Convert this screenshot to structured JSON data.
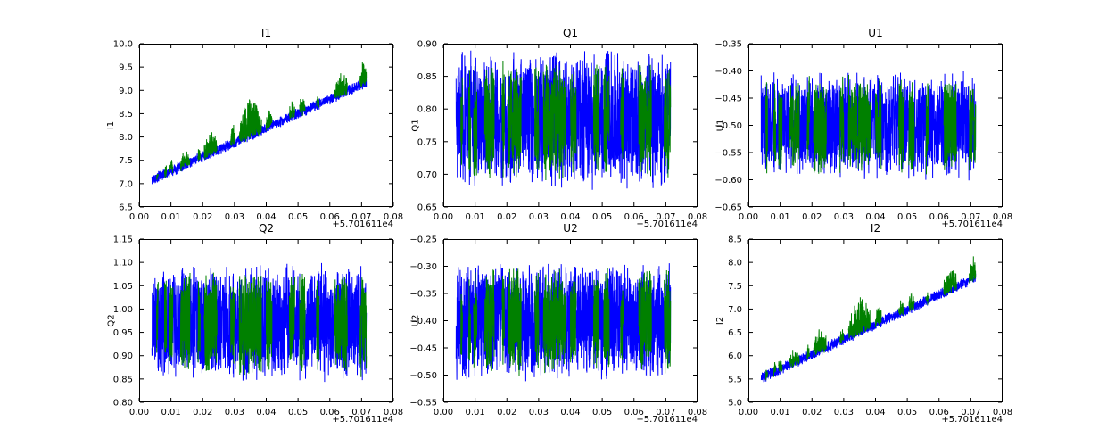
{
  "figure": {
    "background": "#ffffff",
    "axes_color": "#000000",
    "colors": {
      "series_blue": "#0000ff",
      "series_green": "#008000"
    },
    "x_offset_label": "+5.701611e4",
    "x_data_start": 0.004,
    "x_data_end": 0.0715,
    "green_intervals": [
      [
        0.0055,
        0.006,
        0.15
      ],
      [
        0.008,
        0.0086,
        0.25
      ],
      [
        0.0095,
        0.0106,
        0.3
      ],
      [
        0.013,
        0.016,
        0.35
      ],
      [
        0.0185,
        0.0192,
        0.3
      ],
      [
        0.0205,
        0.0245,
        0.6
      ],
      [
        0.0288,
        0.03,
        0.5
      ],
      [
        0.0315,
        0.0385,
        1.0
      ],
      [
        0.04,
        0.0418,
        0.5
      ],
      [
        0.0473,
        0.049,
        0.35
      ],
      [
        0.0505,
        0.0522,
        0.45
      ],
      [
        0.0558,
        0.0566,
        0.25
      ],
      [
        0.0615,
        0.0655,
        0.6
      ],
      [
        0.0695,
        0.0716,
        0.65
      ]
    ]
  },
  "chart_data": [
    {
      "type": "line",
      "title": "I1",
      "ylabel": "I1",
      "x_offset": "+5.701611e4",
      "xlim": [
        0,
        0.08
      ],
      "ylim": [
        6.5,
        10.0
      ],
      "xtick_values": [
        0,
        0.01,
        0.02,
        0.03,
        0.04,
        0.05,
        0.06,
        0.07,
        0.08
      ],
      "xtick_labels": [
        "0.00",
        "0.01",
        "0.02",
        "0.03",
        "0.04",
        "0.05",
        "0.06",
        "0.07",
        "0.08"
      ],
      "ytick_values": [
        6.5,
        7.0,
        7.5,
        8.0,
        8.5,
        9.0,
        9.5,
        10.0
      ],
      "ytick_labels": [
        "6.5",
        "7.0",
        "7.5",
        "8.0",
        "8.5",
        "9.0",
        "9.5",
        "10.0"
      ],
      "series": [
        {
          "name": "channel-blue",
          "color_key": "series_blue",
          "kind": "trend",
          "y_start": 7.08,
          "y_end": 9.17,
          "band": 0.26
        },
        {
          "name": "channel-green",
          "color_key": "series_green",
          "kind": "trend_spikes",
          "y_start": 7.08,
          "y_end": 9.17,
          "band": 0.22,
          "spike_amp": 0.75
        }
      ]
    },
    {
      "type": "line",
      "title": "Q1",
      "ylabel": "Q1",
      "x_offset": "+5.701611e4",
      "xlim": [
        0,
        0.08
      ],
      "ylim": [
        0.65,
        0.9
      ],
      "xtick_values": [
        0,
        0.01,
        0.02,
        0.03,
        0.04,
        0.05,
        0.06,
        0.07,
        0.08
      ],
      "xtick_labels": [
        "0.00",
        "0.01",
        "0.02",
        "0.03",
        "0.04",
        "0.05",
        "0.06",
        "0.07",
        "0.08"
      ],
      "ytick_values": [
        0.65,
        0.7,
        0.75,
        0.8,
        0.85,
        0.9
      ],
      "ytick_labels": [
        "0.65",
        "0.70",
        "0.75",
        "0.80",
        "0.85",
        "0.90"
      ],
      "series": [
        {
          "name": "channel-blue",
          "color_key": "series_blue",
          "kind": "band",
          "y_low": 0.675,
          "y_high": 0.893
        },
        {
          "name": "channel-green",
          "color_key": "series_green",
          "kind": "band",
          "y_low": 0.688,
          "y_high": 0.88
        }
      ]
    },
    {
      "type": "line",
      "title": "U1",
      "ylabel": "U1",
      "x_offset": "+5.701611e4",
      "xlim": [
        0,
        0.08
      ],
      "ylim": [
        -0.65,
        -0.35
      ],
      "xtick_values": [
        0,
        0.01,
        0.02,
        0.03,
        0.04,
        0.05,
        0.06,
        0.07,
        0.08
      ],
      "xtick_labels": [
        "0.00",
        "0.01",
        "0.02",
        "0.03",
        "0.04",
        "0.05",
        "0.06",
        "0.07",
        "0.08"
      ],
      "ytick_values": [
        -0.65,
        -0.6,
        -0.55,
        -0.5,
        -0.45,
        -0.4,
        -0.35
      ],
      "ytick_labels": [
        "−0.65",
        "−0.60",
        "−0.55",
        "−0.50",
        "−0.45",
        "−0.40",
        "−0.35"
      ],
      "series": [
        {
          "name": "channel-blue",
          "color_key": "series_blue",
          "kind": "band",
          "y_low": -0.603,
          "y_high": -0.397
        },
        {
          "name": "channel-green",
          "color_key": "series_green",
          "kind": "band",
          "y_low": -0.594,
          "y_high": -0.406
        }
      ]
    },
    {
      "type": "line",
      "title": "Q2",
      "ylabel": "Q2",
      "x_offset": "+5.701611e4",
      "xlim": [
        0,
        0.08
      ],
      "ylim": [
        0.8,
        1.15
      ],
      "xtick_values": [
        0,
        0.01,
        0.02,
        0.03,
        0.04,
        0.05,
        0.06,
        0.07,
        0.08
      ],
      "xtick_labels": [
        "0.00",
        "0.01",
        "0.02",
        "0.03",
        "0.04",
        "0.05",
        "0.06",
        "0.07",
        "0.08"
      ],
      "ytick_values": [
        0.8,
        0.85,
        0.9,
        0.95,
        1.0,
        1.05,
        1.1,
        1.15
      ],
      "ytick_labels": [
        "0.80",
        "0.85",
        "0.90",
        "0.95",
        "1.00",
        "1.05",
        "1.10",
        "1.15"
      ],
      "series": [
        {
          "name": "channel-blue",
          "color_key": "series_blue",
          "kind": "band",
          "y_low": 0.838,
          "y_high": 1.103
        },
        {
          "name": "channel-green",
          "color_key": "series_green",
          "kind": "band",
          "y_low": 0.852,
          "y_high": 1.089
        }
      ]
    },
    {
      "type": "line",
      "title": "U2",
      "ylabel": "U2",
      "x_offset": "+5.701611e4",
      "xlim": [
        0,
        0.08
      ],
      "ylim": [
        -0.55,
        -0.25
      ],
      "xtick_values": [
        0,
        0.01,
        0.02,
        0.03,
        0.04,
        0.05,
        0.06,
        0.07,
        0.08
      ],
      "xtick_labels": [
        "0.00",
        "0.01",
        "0.02",
        "0.03",
        "0.04",
        "0.05",
        "0.06",
        "0.07",
        "0.08"
      ],
      "ytick_values": [
        -0.55,
        -0.5,
        -0.45,
        -0.4,
        -0.35,
        -0.3,
        -0.25
      ],
      "ytick_labels": [
        "−0.55",
        "−0.50",
        "−0.45",
        "−0.40",
        "−0.35",
        "−0.30",
        "−0.25"
      ],
      "series": [
        {
          "name": "channel-blue",
          "color_key": "series_blue",
          "kind": "band",
          "y_low": -0.513,
          "y_high": -0.287
        },
        {
          "name": "channel-green",
          "color_key": "series_green",
          "kind": "band",
          "y_low": -0.503,
          "y_high": -0.297
        }
      ]
    },
    {
      "type": "line",
      "title": "I2",
      "ylabel": "I2",
      "x_offset": "+5.701611e4",
      "xlim": [
        0,
        0.08
      ],
      "ylim": [
        5.0,
        8.5
      ],
      "xtick_values": [
        0,
        0.01,
        0.02,
        0.03,
        0.04,
        0.05,
        0.06,
        0.07,
        0.08
      ],
      "xtick_labels": [
        "0.00",
        "0.01",
        "0.02",
        "0.03",
        "0.04",
        "0.05",
        "0.06",
        "0.07",
        "0.08"
      ],
      "ytick_values": [
        5.0,
        5.5,
        6.0,
        6.5,
        7.0,
        7.5,
        8.0,
        8.5
      ],
      "ytick_labels": [
        "5.0",
        "5.5",
        "6.0",
        "6.5",
        "7.0",
        "7.5",
        "8.0",
        "8.5"
      ],
      "series": [
        {
          "name": "channel-blue",
          "color_key": "series_blue",
          "kind": "trend",
          "y_start": 5.52,
          "y_end": 7.67,
          "band": 0.26
        },
        {
          "name": "channel-green",
          "color_key": "series_green",
          "kind": "trend_spikes",
          "y_start": 5.52,
          "y_end": 7.67,
          "band": 0.22,
          "spike_amp": 0.7
        }
      ]
    }
  ]
}
